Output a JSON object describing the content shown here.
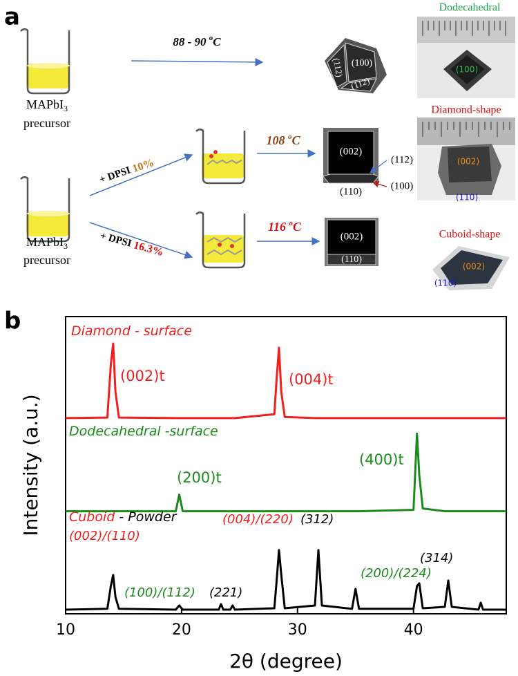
{
  "panel_a": {
    "label": "a",
    "precursor_top": {
      "name": "MAPbI",
      "subscript": "3",
      "word": "precursor"
    },
    "precursor_bottom": {
      "name": "MAPbI",
      "subscript": "3",
      "word": "precursor"
    },
    "temp_1": {
      "value": "88 - 90 ",
      "sup": "o",
      "unit": "C"
    },
    "temp_2": {
      "value": "108 ",
      "sup": "o",
      "unit": "C"
    },
    "temp_3": {
      "value": "116 ",
      "sup": "o",
      "unit": "C"
    },
    "additive_1": {
      "text": "+ DPSI ",
      "amount": "10%"
    },
    "additive_2": {
      "text": "+ DPSI ",
      "amount": "16.3%"
    },
    "crystal_dodecahedral": [
      "(100)",
      "(112)",
      "(112)"
    ],
    "crystal_diamond": [
      "(002)",
      "(112)",
      "(110)",
      "(100)"
    ],
    "crystal_cuboid": [
      "(002)",
      "(110)"
    ],
    "photo_dodecahedral": {
      "title": "Dodecahedral",
      "face": "(100)"
    },
    "photo_diamond": {
      "title": "Diamond-shape",
      "faces": [
        "(002)",
        "(110)"
      ]
    },
    "photo_cuboid": {
      "title": "Cuboid-shape",
      "faces": [
        "(002)",
        "(110)"
      ]
    }
  },
  "chart_data": {
    "type": "line",
    "panel_label": "b",
    "x_label": "2θ (degree)",
    "y_label": "Intensity (a.u.)",
    "xlim": [
      10,
      48
    ],
    "xticks": [
      10,
      20,
      30,
      40
    ],
    "ylim": [
      0,
      100
    ],
    "x": [
      10,
      13.6,
      13.9,
      14.1,
      14.3,
      14.6,
      19.5,
      19.8,
      20.1,
      23.2,
      23.4,
      23.6,
      24.2,
      24.4,
      24.6,
      28.0,
      28.2,
      28.4,
      28.6,
      28.9,
      31.5,
      31.8,
      32.1,
      34.7,
      35.0,
      35.3,
      40.0,
      40.3,
      40.5,
      40.8,
      42.7,
      43.0,
      43.3,
      45.6,
      45.8,
      46.0,
      48
    ],
    "series": [
      {
        "name": "Diamond - surface",
        "color": "#f01e1e",
        "values": [
          70.6,
          70.8,
          90,
          97.5,
          80,
          70.8,
          70.6,
          70.6,
          70.6,
          70.6,
          70.6,
          70.6,
          70.6,
          70.6,
          70.6,
          72,
          85,
          96,
          80,
          71,
          70.6,
          70.6,
          70.6,
          70.6,
          70.6,
          70.6,
          70.6,
          70.6,
          70.6,
          70.6,
          70.6,
          70.6,
          70.6,
          70.6,
          70.6,
          70.6,
          70.6
        ]
      },
      {
        "name": "Dodecahedral -surface",
        "color": "#1a8a1a",
        "values": [
          37,
          37,
          37,
          37,
          37,
          37,
          37,
          43,
          37,
          37,
          37,
          37,
          37,
          37,
          37,
          37,
          37,
          37,
          37,
          37,
          37,
          37,
          37,
          37,
          37,
          37,
          37.5,
          65,
          50,
          38,
          37,
          37,
          37,
          37,
          37,
          37,
          37
        ]
      },
      {
        "name": "Cuboid",
        "name_color": "#f01e1e",
        "label_suffix": " - Powder",
        "color": "#000000",
        "values": [
          1.5,
          1.8,
          10,
          14,
          6,
          1.8,
          1.5,
          3,
          1.5,
          1.5,
          3.5,
          1.5,
          1.5,
          3,
          1.5,
          2,
          12,
          23,
          14,
          2,
          3,
          23,
          3,
          1.8,
          9,
          1.8,
          1.8,
          10,
          11,
          2,
          2.5,
          12,
          2.5,
          1.5,
          4,
          1.5,
          1.5
        ]
      }
    ],
    "annotations": [
      {
        "text": "(002)t",
        "color": "#f01e1e"
      },
      {
        "text": "(004)t",
        "color": "#f01e1e"
      },
      {
        "text": "(200)t",
        "color": "#1a8a1a"
      },
      {
        "text": "(400)t",
        "color": "#1a8a1a"
      },
      {
        "text": "(002)/(110)",
        "color": "#f01e1e"
      },
      {
        "text": "(100)/(112)",
        "color": "#1a8a1a"
      },
      {
        "text": "(221)",
        "color": "#000000"
      },
      {
        "text": "(004)/(220)",
        "color": "#f01e1e"
      },
      {
        "text": "(312)",
        "color": "#000000"
      },
      {
        "text": "(200)/(224)",
        "color": "#1a8a1a"
      },
      {
        "text": "(314)",
        "color": "#000000"
      }
    ]
  }
}
